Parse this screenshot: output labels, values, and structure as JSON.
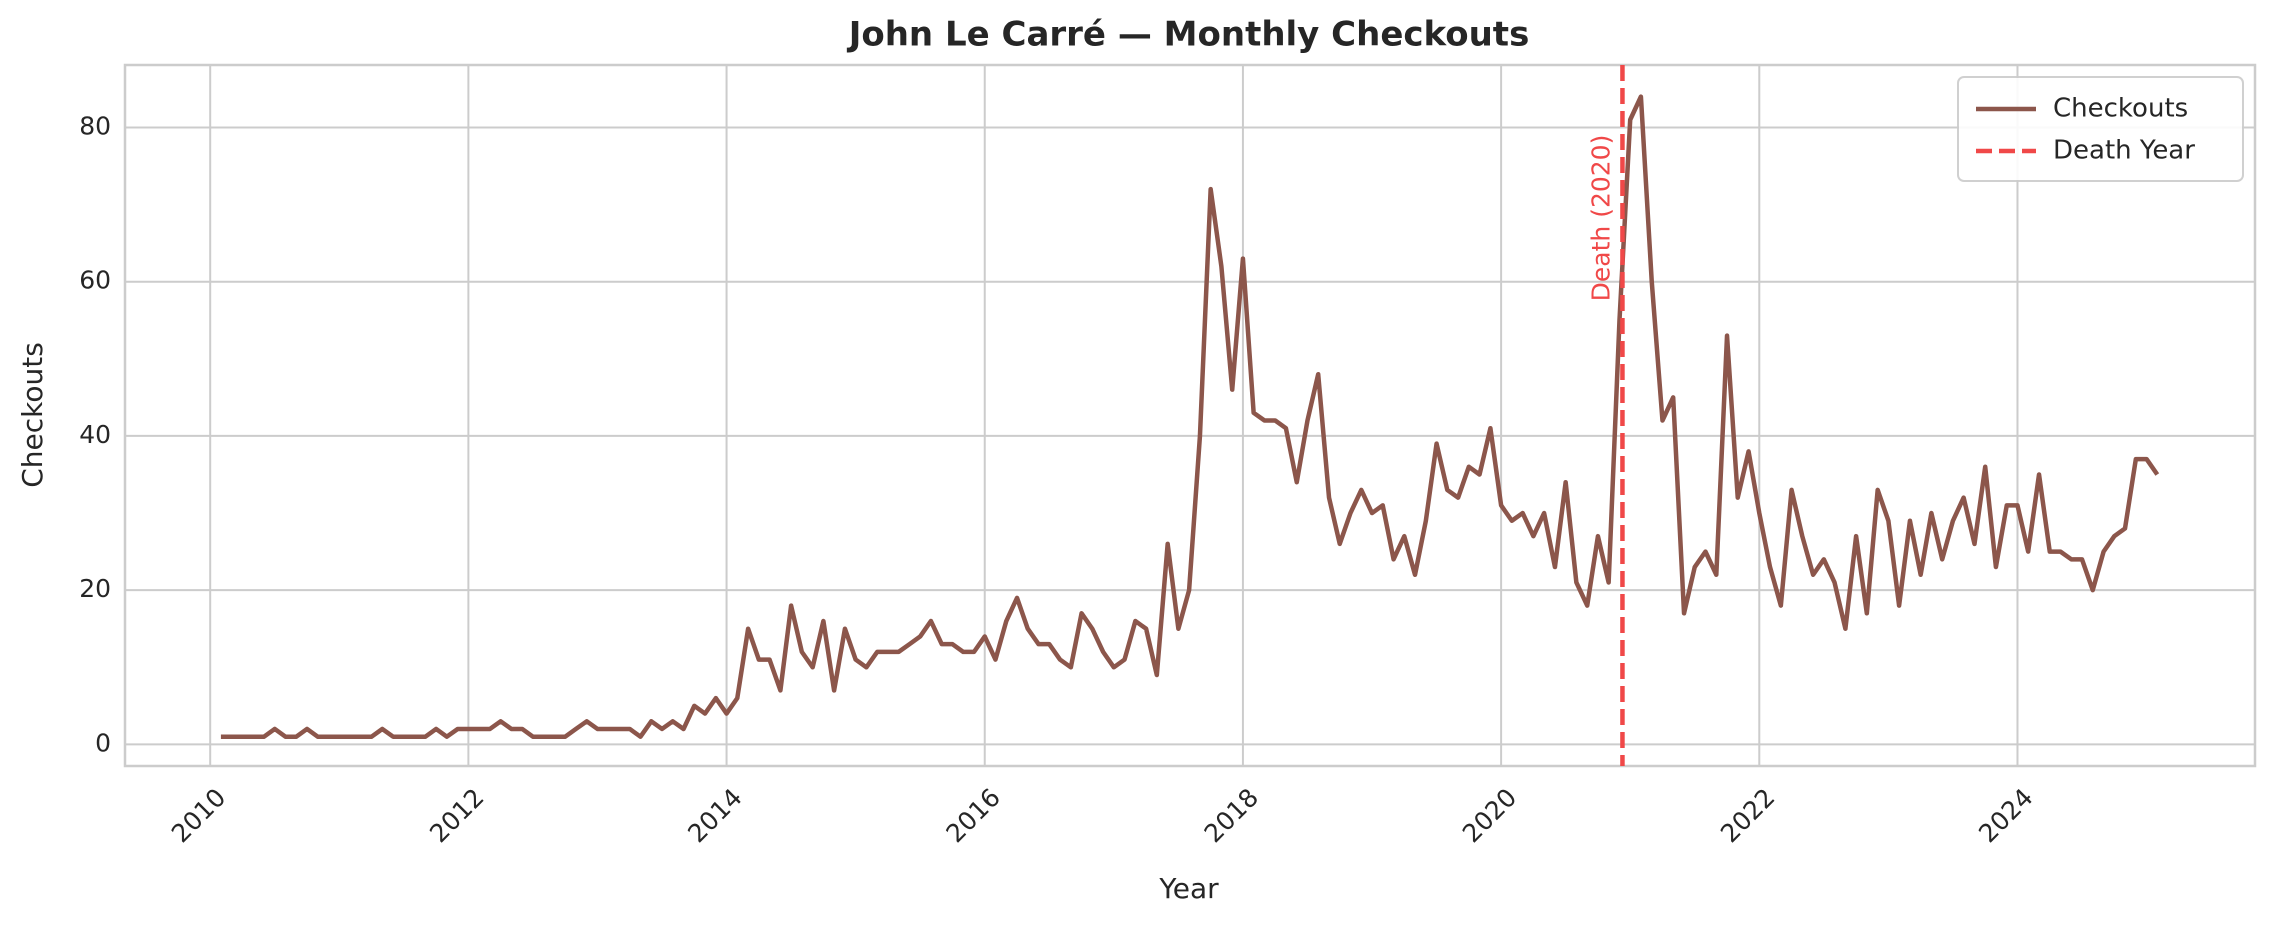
{
  "chart_data": {
    "type": "line",
    "title": "John Le Carré — Monthly Checkouts",
    "x_label": "Year",
    "y_label": "Checkouts",
    "x": [
      2010.083,
      2010.167,
      2010.25,
      2010.333,
      2010.417,
      2010.5,
      2010.583,
      2010.667,
      2010.75,
      2010.833,
      2010.917,
      2011.0,
      2011.083,
      2011.167,
      2011.25,
      2011.333,
      2011.417,
      2011.5,
      2011.583,
      2011.667,
      2011.75,
      2011.833,
      2011.917,
      2012.0,
      2012.083,
      2012.167,
      2012.25,
      2012.333,
      2012.417,
      2012.5,
      2012.583,
      2012.667,
      2012.75,
      2012.833,
      2012.917,
      2013.0,
      2013.083,
      2013.167,
      2013.25,
      2013.333,
      2013.417,
      2013.5,
      2013.583,
      2013.667,
      2013.75,
      2013.833,
      2013.917,
      2014.0,
      2014.083,
      2014.167,
      2014.25,
      2014.333,
      2014.417,
      2014.5,
      2014.583,
      2014.667,
      2014.75,
      2014.833,
      2014.917,
      2015.0,
      2015.083,
      2015.167,
      2015.25,
      2015.333,
      2015.417,
      2015.5,
      2015.583,
      2015.667,
      2015.75,
      2015.833,
      2015.917,
      2016.0,
      2016.083,
      2016.167,
      2016.25,
      2016.333,
      2016.417,
      2016.5,
      2016.583,
      2016.667,
      2016.75,
      2016.833,
      2016.917,
      2017.0,
      2017.083,
      2017.167,
      2017.25,
      2017.333,
      2017.417,
      2017.5,
      2017.583,
      2017.667,
      2017.75,
      2017.833,
      2017.917,
      2018.0,
      2018.083,
      2018.167,
      2018.25,
      2018.333,
      2018.417,
      2018.5,
      2018.583,
      2018.667,
      2018.75,
      2018.833,
      2018.917,
      2019.0,
      2019.083,
      2019.167,
      2019.25,
      2019.333,
      2019.417,
      2019.5,
      2019.583,
      2019.667,
      2019.75,
      2019.833,
      2019.917,
      2020.0,
      2020.083,
      2020.167,
      2020.25,
      2020.333,
      2020.417,
      2020.5,
      2020.583,
      2020.667,
      2020.75,
      2020.833,
      2020.917,
      2021.0,
      2021.083,
      2021.167,
      2021.25,
      2021.333,
      2021.417,
      2021.5,
      2021.583,
      2021.667,
      2021.75,
      2021.833,
      2021.917,
      2022.0,
      2022.083,
      2022.167,
      2022.25,
      2022.333,
      2022.417,
      2022.5,
      2022.583,
      2022.667,
      2022.75,
      2022.833,
      2022.917,
      2023.0,
      2023.083,
      2023.167,
      2023.25,
      2023.333,
      2023.417,
      2023.5,
      2023.583,
      2023.667,
      2023.75,
      2023.833,
      2023.917,
      2024.0,
      2024.083,
      2024.167,
      2024.25,
      2024.333,
      2024.417,
      2024.5,
      2024.583,
      2024.667,
      2024.75,
      2024.833,
      2024.917,
      2025.0,
      2025.083
    ],
    "series": [
      {
        "name": "Checkouts",
        "color": "#8c564b",
        "values": [
          1,
          1,
          1,
          1,
          1,
          2,
          1,
          1,
          2,
          1,
          1,
          1,
          1,
          1,
          1,
          2,
          1,
          1,
          1,
          1,
          2,
          1,
          2,
          2,
          2,
          2,
          3,
          2,
          2,
          1,
          1,
          1,
          1,
          2,
          3,
          2,
          2,
          2,
          2,
          1,
          3,
          2,
          3,
          2,
          5,
          4,
          6,
          4,
          6,
          15,
          11,
          11,
          7,
          18,
          12,
          10,
          16,
          7,
          15,
          11,
          10,
          12,
          12,
          12,
          13,
          14,
          16,
          13,
          13,
          12,
          12,
          14,
          11,
          16,
          19,
          15,
          13,
          13,
          11,
          10,
          17,
          15,
          12,
          10,
          11,
          16,
          15,
          9,
          26,
          15,
          20,
          40,
          72,
          62,
          46,
          63,
          43,
          42,
          42,
          41,
          34,
          42,
          48,
          32,
          26,
          30,
          33,
          30,
          31,
          24,
          27,
          22,
          29,
          39,
          33,
          32,
          36,
          35,
          41,
          31,
          29,
          30,
          27,
          30,
          23,
          34,
          21,
          18,
          27,
          21,
          55,
          81,
          84,
          60,
          42,
          45,
          17,
          23,
          25,
          22,
          53,
          32,
          38,
          30,
          23,
          18,
          33,
          27,
          22,
          24,
          21,
          15,
          27,
          17,
          33,
          29,
          18,
          29,
          22,
          30,
          24,
          29,
          32,
          26,
          36,
          23,
          31,
          31,
          25,
          35,
          25,
          25,
          24,
          24,
          20,
          25,
          27,
          28,
          37,
          37,
          35
        ]
      }
    ],
    "death_line": {
      "name": "Death Year",
      "x": 2020.94,
      "label": "Death (2020)",
      "color": "#f04848"
    },
    "xlim": [
      2009.34,
      2025.84
    ],
    "xticks": [
      2010,
      2012,
      2014,
      2016,
      2018,
      2020,
      2022,
      2024
    ],
    "ylim": [
      -2.8,
      88.1
    ],
    "yticks": [
      0,
      20,
      40,
      60,
      80
    ],
    "grid": true,
    "legend": "upper right"
  }
}
